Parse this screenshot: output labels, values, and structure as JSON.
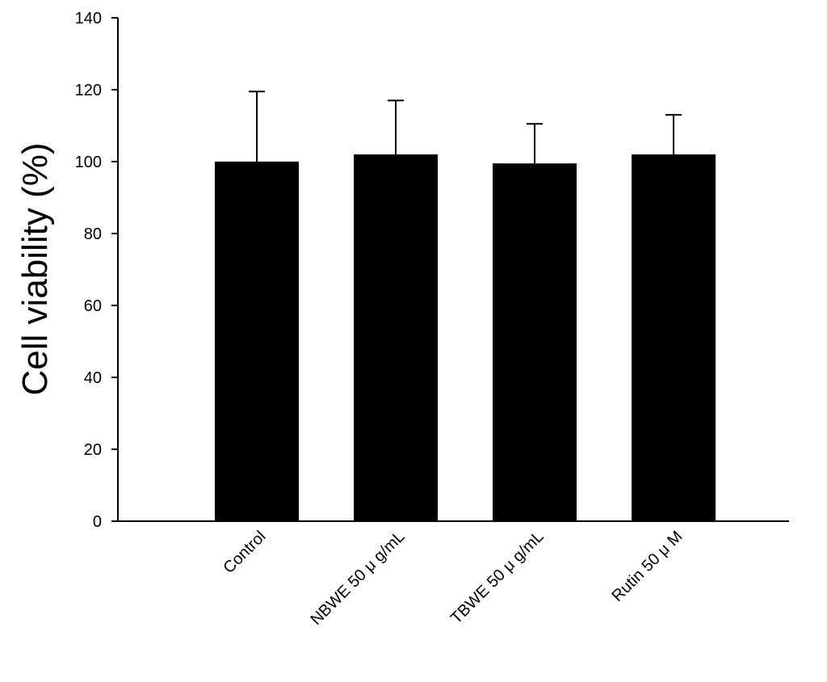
{
  "chart_data": {
    "type": "bar",
    "title": "",
    "xlabel": "",
    "ylabel": "Cell viability (%)",
    "ylim": [
      0,
      140
    ],
    "yticks": [
      0,
      20,
      40,
      60,
      80,
      100,
      120,
      140
    ],
    "categories": [
      "Control",
      "NBWE 50 μ g/mL",
      "TBWE 50 μ g/mL",
      "Rutin 50 μ M"
    ],
    "series": [
      {
        "values": [
          100,
          102,
          99.5,
          102
        ],
        "errors": [
          19.5,
          15,
          11,
          11
        ]
      }
    ],
    "bar_color": "#000000",
    "grid": false,
    "legend": "none"
  }
}
